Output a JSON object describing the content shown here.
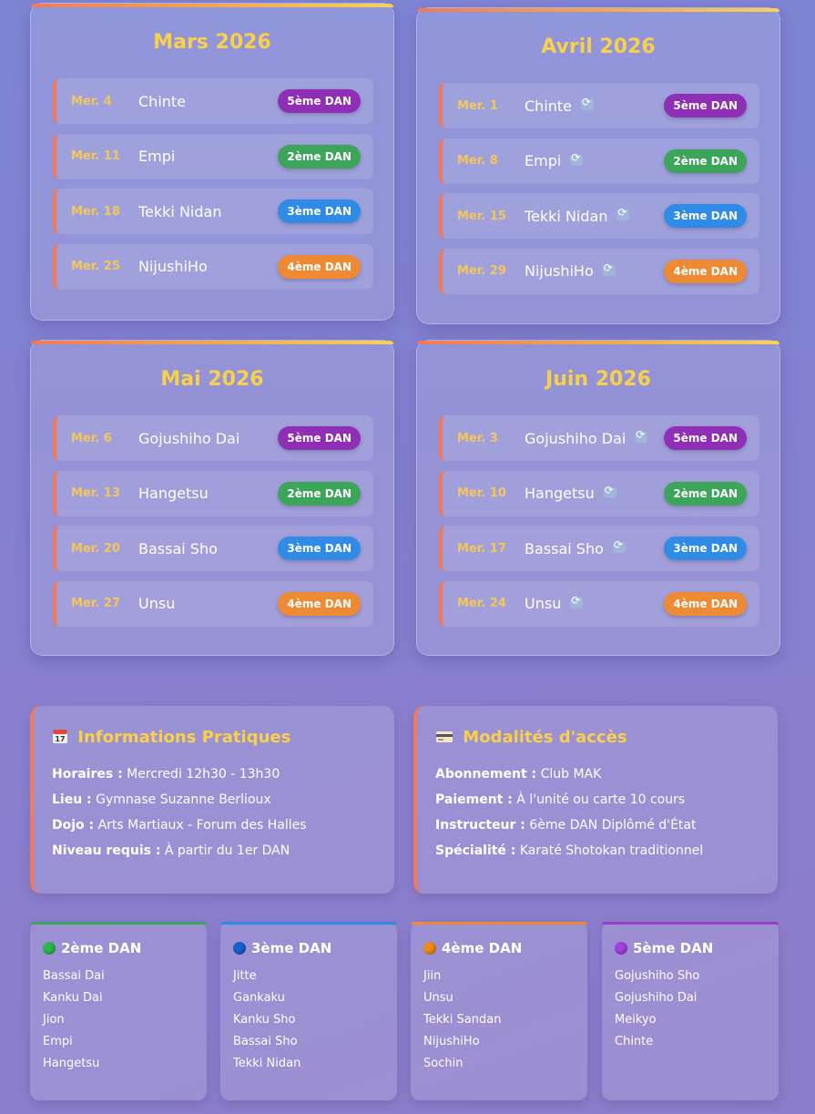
{
  "months": [
    {
      "title": "Mars 2026",
      "sessions": [
        {
          "date": "Mer. 4",
          "kata": "Chinte",
          "badge": "5ème DAN",
          "level": "5",
          "sync": false
        },
        {
          "date": "Mer. 11",
          "kata": "Empi",
          "badge": "2ème DAN",
          "level": "2",
          "sync": false
        },
        {
          "date": "Mer. 18",
          "kata": "Tekki Nidan",
          "badge": "3ème DAN",
          "level": "3",
          "sync": false
        },
        {
          "date": "Mer. 25",
          "kata": "NijushiHo",
          "badge": "4ème DAN",
          "level": "4",
          "sync": false
        }
      ]
    },
    {
      "title": "Avril 2026",
      "sessions": [
        {
          "date": "Mer. 1",
          "kata": "Chinte",
          "badge": "5ème DAN",
          "level": "5",
          "sync": true
        },
        {
          "date": "Mer. 8",
          "kata": "Empi",
          "badge": "2ème DAN",
          "level": "2",
          "sync": true
        },
        {
          "date": "Mer. 15",
          "kata": "Tekki Nidan",
          "badge": "3ème DAN",
          "level": "3",
          "sync": true
        },
        {
          "date": "Mer. 29",
          "kata": "NijushiHo",
          "badge": "4ème DAN",
          "level": "4",
          "sync": true
        }
      ]
    },
    {
      "title": "Mai 2026",
      "sessions": [
        {
          "date": "Mer. 6",
          "kata": "Gojushiho Dai",
          "badge": "5ème DAN",
          "level": "5",
          "sync": false
        },
        {
          "date": "Mer. 13",
          "kata": "Hangetsu",
          "badge": "2ème DAN",
          "level": "2",
          "sync": false
        },
        {
          "date": "Mer. 20",
          "kata": "Bassai Sho",
          "badge": "3ème DAN",
          "level": "3",
          "sync": false
        },
        {
          "date": "Mer. 27",
          "kata": "Unsu",
          "badge": "4ème DAN",
          "level": "4",
          "sync": false
        }
      ]
    },
    {
      "title": "Juin 2026",
      "sessions": [
        {
          "date": "Mer. 3",
          "kata": "Gojushiho Dai",
          "badge": "5ème DAN",
          "level": "5",
          "sync": true
        },
        {
          "date": "Mer. 10",
          "kata": "Hangetsu",
          "badge": "2ème DAN",
          "level": "2",
          "sync": true
        },
        {
          "date": "Mer. 17",
          "kata": "Bassai Sho",
          "badge": "3ème DAN",
          "level": "3",
          "sync": true
        },
        {
          "date": "Mer. 24",
          "kata": "Unsu",
          "badge": "4ème DAN",
          "level": "4",
          "sync": true
        }
      ]
    }
  ],
  "info_practical": {
    "icon": "calendar-icon",
    "title": "Informations Pratiques",
    "lines": [
      {
        "label": "Horaires :",
        "value": "Mercredi 12h30 - 13h30"
      },
      {
        "label": "Lieu :",
        "value": "Gymnase Suzanne Berlioux"
      },
      {
        "label": "Dojo :",
        "value": "Arts Martiaux - Forum des Halles"
      },
      {
        "label": "Niveau requis :",
        "value": "À partir du 1er DAN"
      }
    ]
  },
  "info_access": {
    "icon": "credit-card-icon",
    "title": "Modalités d'accès",
    "lines": [
      {
        "label": "Abonnement :",
        "value": "Club MAK"
      },
      {
        "label": "Paiement :",
        "value": "À l'unité ou carte 10 cours"
      },
      {
        "label": "Instructeur :",
        "value": "6ème DAN Diplômé d'État"
      },
      {
        "label": "Spécialité :",
        "value": "Karaté Shotokan traditionnel"
      }
    ]
  },
  "dan_levels": [
    {
      "title": "2ème DAN",
      "dot": "green-circle-icon",
      "katas": [
        "Bassai Dai",
        "Kanku Dai",
        "Jion",
        "Empi",
        "Hangetsu"
      ]
    },
    {
      "title": "3ème DAN",
      "dot": "blue-circle-icon",
      "katas": [
        "Jitte",
        "Gankaku",
        "Kanku Sho",
        "Bassai Sho",
        "Tekki Nidan"
      ]
    },
    {
      "title": "4ème DAN",
      "dot": "orange-circle-icon",
      "katas": [
        "Jiin",
        "Unsu",
        "Tekki Sandan",
        "NijushiHo",
        "Sochin"
      ]
    },
    {
      "title": "5ème DAN",
      "dot": "purple-circle-icon",
      "katas": [
        "Gojushiho Sho",
        "Gojushiho Dai",
        "Meikyo",
        "Chinte"
      ]
    }
  ],
  "colors": {
    "accent_title": "#f8d04a",
    "date": "#f3c75a",
    "dan2": "#3ca55a",
    "dan3": "#2f8be6",
    "dan4": "#ee8a34",
    "dan5": "#8e2fb5"
  }
}
